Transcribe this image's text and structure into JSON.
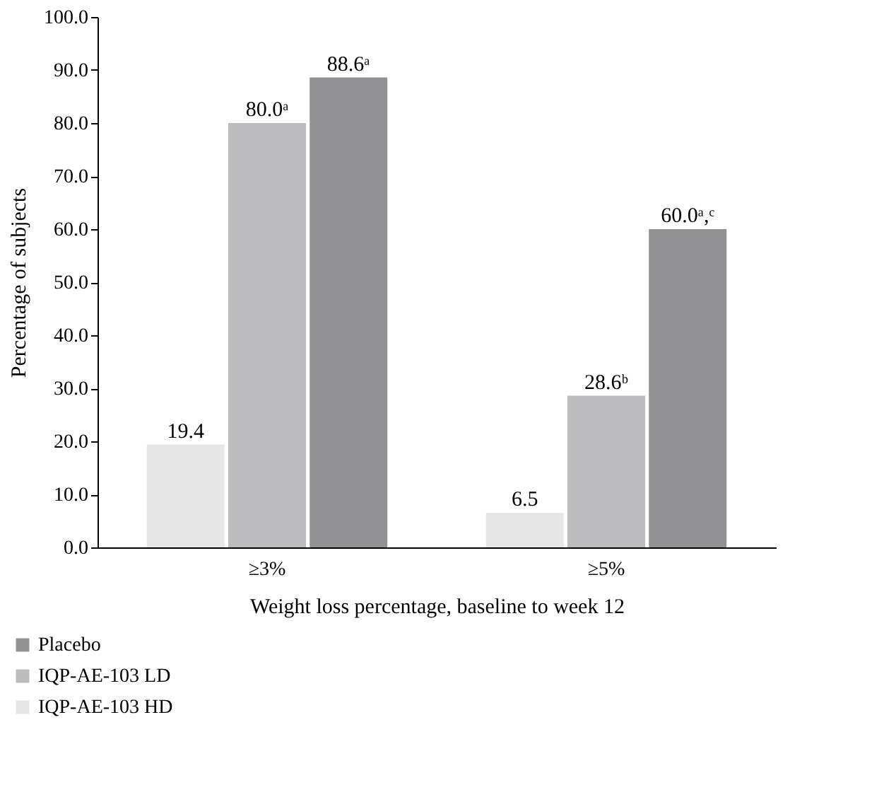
{
  "chart_data": {
    "type": "bar",
    "xlabel": "Weight loss percentage, baseline to week 12",
    "ylabel": "Percentage of subjects",
    "categories": [
      "≥3%",
      "≥5%"
    ],
    "series": [
      {
        "name": "IQP-AE-103 HD",
        "color": "#e6e6e7",
        "values": [
          19.4,
          6.5
        ],
        "value_labels": [
          "19.4",
          "6.5"
        ]
      },
      {
        "name": "IQP-AE-103 LD",
        "color": "#bcbcbe",
        "values": [
          80.0,
          28.6
        ],
        "value_labels": [
          "80.0ᵃ",
          "28.6ᵇ"
        ]
      },
      {
        "name": "Placebo",
        "color": "#929295",
        "values": [
          88.6,
          60.0
        ],
        "value_labels": [
          "88.6ᵃ",
          "60.0ᵃ,ᶜ"
        ]
      }
    ],
    "ylim": [
      0,
      100
    ],
    "yticks": [
      {
        "value": 0,
        "label": "0.0"
      },
      {
        "value": 10,
        "label": "10.0"
      },
      {
        "value": 20,
        "label": "20.0"
      },
      {
        "value": 30,
        "label": "30.0"
      },
      {
        "value": 40,
        "label": "40.0"
      },
      {
        "value": 50,
        "label": "50.0"
      },
      {
        "value": 60,
        "label": "60.0"
      },
      {
        "value": 70,
        "label": "70.0"
      },
      {
        "value": 80,
        "label": "80.0"
      },
      {
        "value": 90,
        "label": "90.0"
      },
      {
        "value": 100,
        "label": "100.0"
      }
    ],
    "grid": false,
    "legend": "bottom left"
  }
}
